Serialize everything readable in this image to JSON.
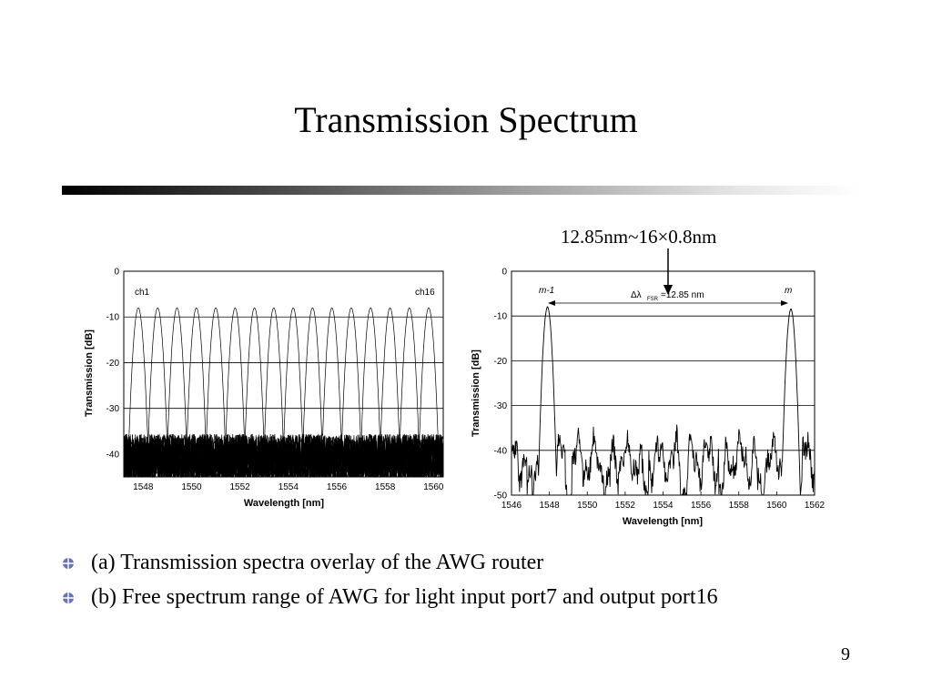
{
  "slide": {
    "title": "Transmission Spectrum",
    "annotation": "12.85nm~16×0.8nm",
    "bullets": [
      "(a) Transmission spectra overlay of the AWG router",
      "(b) Free spectrum range of AWG for light input port7 and output port16"
    ],
    "page_number": "9"
  },
  "chart_data": [
    {
      "type": "line",
      "xlabel": "Wavelength [nm]",
      "ylabel": "Transmission [dB]",
      "xlim": [
        1547.2,
        1560.4
      ],
      "ylim": [
        -45,
        0
      ],
      "x_ticks": [
        1548,
        1550,
        1552,
        1554,
        1556,
        1558,
        1560
      ],
      "y_ticks": [
        0,
        -10,
        -20,
        -30,
        -40
      ],
      "grid": "horizontal",
      "annotations": [
        "ch1",
        "ch16"
      ],
      "channel_peaks_nm": [
        1547.8,
        1548.6,
        1549.4,
        1550.2,
        1551.0,
        1551.8,
        1552.6,
        1553.4,
        1554.2,
        1555.0,
        1555.8,
        1556.6,
        1557.4,
        1558.2,
        1559.0,
        1559.8
      ],
      "peak_db": -8,
      "crosstalk_floor_db": [
        -47,
        -35
      ]
    },
    {
      "type": "line",
      "xlabel": "Wavelength [nm]",
      "ylabel": "Transmission [dB]",
      "xlim": [
        1546,
        1562
      ],
      "ylim": [
        -50,
        0
      ],
      "x_ticks": [
        1546,
        1548,
        1550,
        1552,
        1554,
        1556,
        1558,
        1560,
        1562
      ],
      "y_ticks": [
        0,
        -10,
        -20,
        -30,
        -40,
        -50
      ],
      "grid": "horizontal",
      "annotations": [
        "m-1",
        "m",
        "Δλ",
        "FSR",
        "=12.85 nm"
      ],
      "peaks": [
        {
          "x": 1547.9,
          "y": -8,
          "label": "m-1"
        },
        {
          "x": 1560.75,
          "y": -8.5,
          "label": "m"
        }
      ],
      "fsr_nm": 12.85
    }
  ]
}
